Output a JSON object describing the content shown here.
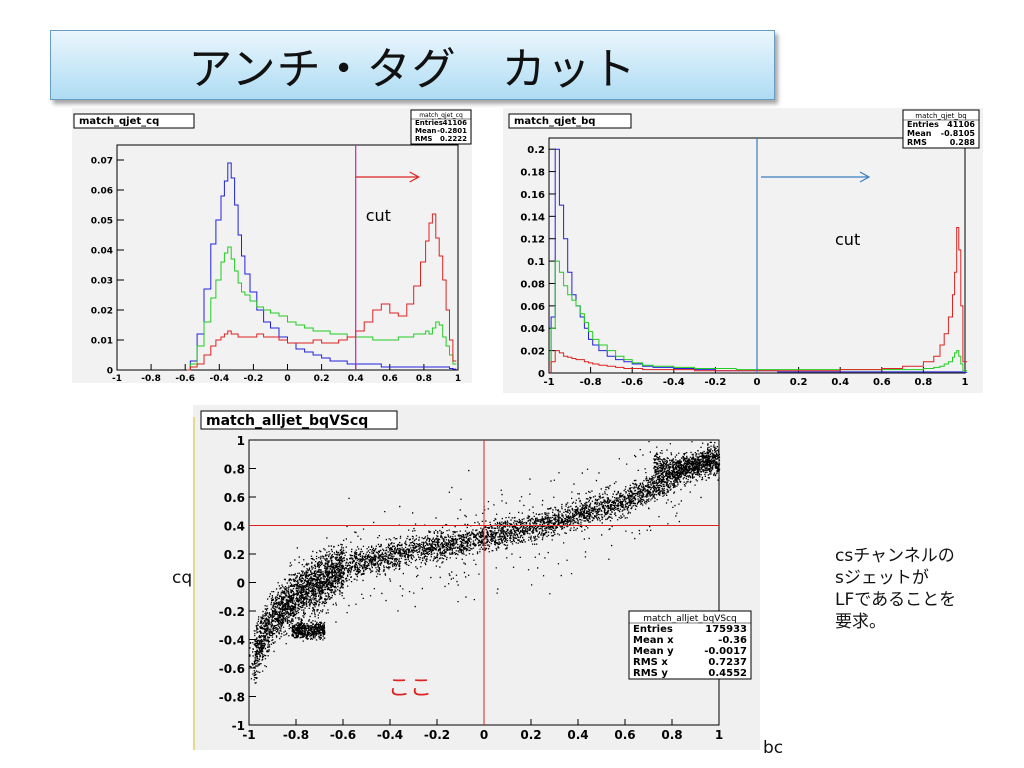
{
  "title": "アンチ・タグ　カット",
  "side_note": [
    "csチャンネルの",
    "sジェットが",
    "LFであることを",
    "要求。"
  ],
  "labels": {
    "cq": "cq",
    "bc": "bc",
    "koko": "ここ"
  },
  "colors": {
    "blue": "#2222dd",
    "green": "#22cc22",
    "red": "#dd2222",
    "magenta": "#cc22aa",
    "steel": "#3a7fc0"
  },
  "chart_data": [
    {
      "type": "histogram",
      "title": "match_qjet_cq",
      "stats": [
        [
          "Entries",
          "41106"
        ],
        [
          "Mean",
          "-0.2801"
        ],
        [
          "RMS",
          "0.2222"
        ]
      ],
      "xlim": [
        -1,
        1
      ],
      "ylim": [
        0,
        0.075
      ],
      "xticks": [
        "-1",
        "-0.8",
        "-0.6",
        "-0.4",
        "-0.2",
        "0",
        "0.2",
        "0.4",
        "0.6",
        "0.8",
        "1"
      ],
      "yticks": [
        "0",
        "0.01",
        "0.02",
        "0.03",
        "0.04",
        "0.05",
        "0.06",
        "0.07"
      ],
      "cut": {
        "x": 0.4,
        "label": "cut"
      },
      "x": [
        -0.59,
        -0.57,
        -0.53,
        -0.49,
        -0.45,
        -0.42,
        -0.39,
        -0.37,
        -0.35,
        -0.33,
        -0.31,
        -0.29,
        -0.27,
        -0.25,
        -0.22,
        -0.18,
        -0.14,
        -0.1,
        -0.05,
        0,
        0.05,
        0.1,
        0.15,
        0.2,
        0.25,
        0.3,
        0.35,
        0.4,
        0.45,
        0.5,
        0.55,
        0.6,
        0.65,
        0.7,
        0.74,
        0.78,
        0.81,
        0.83,
        0.85,
        0.87,
        0.89,
        0.91,
        0.93,
        0.95,
        0.97
      ],
      "series": [
        {
          "name": "",
          "color": "blue",
          "values": [
            0,
            0.003,
            0.012,
            0.027,
            0.042,
            0.05,
            0.058,
            0.063,
            0.069,
            0.064,
            0.055,
            0.045,
            0.038,
            0.032,
            0.026,
            0.02,
            0.016,
            0.014,
            0.011,
            0.009,
            0.007,
            0.006,
            0.005,
            0.004,
            0.003,
            0.003,
            0.002,
            0.002,
            0.002,
            0.002,
            0.001,
            0.001,
            0.001,
            0.001,
            0.001,
            0.001,
            0.001,
            0.001,
            0.001,
            0.001,
            0.001,
            0.001,
            0.001,
            0.0005,
            0.0003
          ]
        },
        {
          "name": "",
          "color": "green",
          "values": [
            0,
            0.002,
            0.008,
            0.016,
            0.024,
            0.03,
            0.036,
            0.039,
            0.041,
            0.037,
            0.033,
            0.029,
            0.026,
            0.025,
            0.023,
            0.021,
            0.02,
            0.019,
            0.018,
            0.016,
            0.015,
            0.014,
            0.013,
            0.013,
            0.012,
            0.012,
            0.011,
            0.011,
            0.011,
            0.01,
            0.01,
            0.01,
            0.011,
            0.011,
            0.012,
            0.012,
            0.013,
            0.012,
            0.014,
            0.016,
            0.015,
            0.011,
            0.008,
            0.005,
            0.002
          ]
        },
        {
          "name": "",
          "color": "red",
          "values": [
            0,
            0.001,
            0.002,
            0.005,
            0.008,
            0.01,
            0.011,
            0.012,
            0.013,
            0.012,
            0.012,
            0.011,
            0.011,
            0.011,
            0.011,
            0.012,
            0.011,
            0.011,
            0.01,
            0.009,
            0.009,
            0.009,
            0.01,
            0.009,
            0.009,
            0.01,
            0.011,
            0.013,
            0.016,
            0.02,
            0.022,
            0.019,
            0.018,
            0.022,
            0.028,
            0.036,
            0.043,
            0.049,
            0.052,
            0.044,
            0.038,
            0.03,
            0.02,
            0.01,
            0.003
          ]
        }
      ]
    },
    {
      "type": "histogram",
      "title": "match_qjet_bq",
      "stats": [
        [
          "Entries",
          "41106"
        ],
        [
          "Mean",
          "-0.8105"
        ],
        [
          "RMS",
          "0.288"
        ]
      ],
      "xlim": [
        -1,
        1
      ],
      "ylim": [
        0,
        0.21
      ],
      "xticks": [
        "-1",
        "-0.8",
        "-0.6",
        "-0.4",
        "-0.2",
        "0",
        "0.2",
        "0.4",
        "0.6",
        "0.8",
        "1"
      ],
      "yticks": [
        "0",
        "0.02",
        "0.04",
        "0.06",
        "0.08",
        "0.1",
        "0.12",
        "0.14",
        "0.16",
        "0.18",
        "0.2"
      ],
      "cut": {
        "x": 0,
        "label": "cut"
      },
      "x": [
        -0.99,
        -0.97,
        -0.95,
        -0.93,
        -0.91,
        -0.89,
        -0.87,
        -0.85,
        -0.83,
        -0.81,
        -0.79,
        -0.76,
        -0.72,
        -0.68,
        -0.64,
        -0.6,
        -0.55,
        -0.5,
        -0.4,
        -0.3,
        -0.2,
        -0.1,
        0,
        0.1,
        0.2,
        0.3,
        0.4,
        0.5,
        0.6,
        0.7,
        0.8,
        0.85,
        0.88,
        0.9,
        0.92,
        0.94,
        0.95,
        0.96,
        0.97,
        0.98,
        0.99
      ],
      "series": [
        {
          "name": "",
          "color": "blue",
          "values": [
            0.05,
            0.2,
            0.15,
            0.12,
            0.09,
            0.07,
            0.06,
            0.05,
            0.04,
            0.03,
            0.025,
            0.02,
            0.015,
            0.012,
            0.01,
            0.008,
            0.006,
            0.005,
            0.004,
            0.003,
            0.002,
            0.002,
            0.002,
            0.001,
            0.001,
            0.001,
            0.001,
            0.001,
            0.001,
            0.001,
            0.001,
            0.001,
            0.001,
            0.001,
            0.001,
            0.001,
            0.001,
            0.001,
            0.001,
            0.001,
            0.0005
          ]
        },
        {
          "name": "",
          "color": "green",
          "values": [
            0.04,
            0.1,
            0.09,
            0.078,
            0.07,
            0.065,
            0.06,
            0.053,
            0.045,
            0.037,
            0.03,
            0.025,
            0.02,
            0.015,
            0.012,
            0.009,
            0.007,
            0.006,
            0.005,
            0.004,
            0.004,
            0.003,
            0.003,
            0.003,
            0.003,
            0.003,
            0.003,
            0.003,
            0.003,
            0.003,
            0.004,
            0.005,
            0.006,
            0.008,
            0.01,
            0.014,
            0.018,
            0.02,
            0.015,
            0.008,
            0.002
          ]
        },
        {
          "name": "",
          "color": "red",
          "values": [
            0.01,
            0.02,
            0.018,
            0.015,
            0.014,
            0.013,
            0.012,
            0.012,
            0.01,
            0.009,
            0.008,
            0.007,
            0.006,
            0.005,
            0.004,
            0.004,
            0.003,
            0.003,
            0.003,
            0.002,
            0.002,
            0.002,
            0.002,
            0.002,
            0.002,
            0.002,
            0.003,
            0.003,
            0.004,
            0.006,
            0.01,
            0.015,
            0.025,
            0.035,
            0.05,
            0.07,
            0.09,
            0.13,
            0.11,
            0.06,
            0.01
          ]
        }
      ]
    },
    {
      "type": "scatter",
      "title": "match_alljet_bqVScq",
      "stats": [
        [
          "Entries",
          "175933"
        ],
        [
          "Mean x",
          "-0.36"
        ],
        [
          "Mean y",
          "-0.0017"
        ],
        [
          "RMS x",
          "0.7237"
        ],
        [
          "RMS y",
          "0.4552"
        ]
      ],
      "xlim": [
        -1,
        1
      ],
      "ylim": [
        -1,
        1
      ],
      "xticks": [
        "-1",
        "-0.8",
        "-0.6",
        "-0.4",
        "-0.2",
        "0",
        "0.2",
        "0.4",
        "0.6",
        "0.8",
        "1"
      ],
      "yticks": [
        "-1",
        "-0.8",
        "-0.6",
        "-0.4",
        "-0.2",
        "0",
        "0.2",
        "0.4",
        "0.6",
        "0.8",
        "1"
      ],
      "xlabel": "bc",
      "ylabel": "cq",
      "cuts": {
        "x": 0,
        "y": 0.4
      },
      "band": {
        "x": [
          -0.98,
          -0.9,
          -0.8,
          -0.6,
          -0.4,
          -0.2,
          0,
          0.2,
          0.4,
          0.6,
          0.8,
          0.95
        ],
        "y": [
          -0.5,
          -0.25,
          -0.08,
          0.1,
          0.2,
          0.26,
          0.32,
          0.39,
          0.48,
          0.58,
          0.74,
          0.88
        ]
      }
    }
  ]
}
